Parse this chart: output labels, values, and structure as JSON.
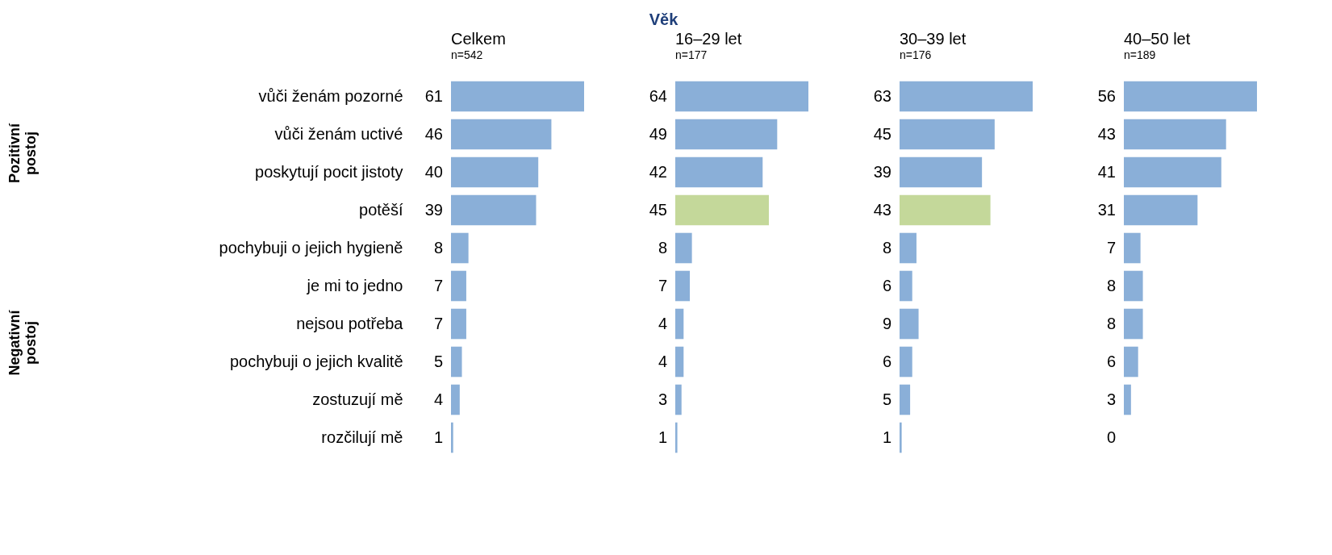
{
  "chart_data": [
    {
      "type": "bar",
      "orientation": "horizontal",
      "title": "Celkem",
      "subtitle": "n=542",
      "categories": [
        "vůči ženám pozorné",
        "vůči ženám uctivé",
        "poskytují pocit jistoty",
        "potěší",
        "pochybuji o jejich hygieně",
        "je mi to jedno",
        "nejsou potřeba",
        "pochybuji o jejich kvalitě",
        "zostuzují mě",
        "rozčilují mě"
      ],
      "values": [
        61,
        46,
        40,
        39,
        8,
        7,
        7,
        5,
        4,
        1
      ],
      "colors": [
        "#8aafd8",
        "#8aafd8",
        "#8aafd8",
        "#8aafd8",
        "#8aafd8",
        "#8aafd8",
        "#8aafd8",
        "#8aafd8",
        "#8aafd8",
        "#8aafd8"
      ],
      "data_labels": true,
      "tick_labels": "y",
      "annotations": [
        "Pozitivní postoj",
        "Negativní postoj"
      ]
    },
    {
      "type": "bar",
      "orientation": "horizontal",
      "title": "16–29 let",
      "subtitle": "n=177",
      "categories": [
        null,
        null,
        null,
        null,
        null,
        null,
        null,
        null,
        null,
        null
      ],
      "values": [
        64,
        49,
        42,
        45,
        8,
        7,
        4,
        4,
        3,
        1
      ],
      "colors": [
        "#8aafd8",
        "#8aafd8",
        "#8aafd8",
        "#c4d89a",
        "#8aafd8",
        "#8aafd8",
        "#8aafd8",
        "#8aafd8",
        "#8aafd8",
        "#8aafd8"
      ],
      "data_labels": true,
      "tick_labels": false,
      "annotations": [
        "Věk"
      ]
    },
    {
      "type": "bar",
      "orientation": "horizontal",
      "title": "30–39 let",
      "subtitle": "n=176",
      "categories": [
        null,
        null,
        null,
        null,
        null,
        null,
        null,
        null,
        null,
        null
      ],
      "values": [
        63,
        45,
        39,
        43,
        8,
        6,
        9,
        6,
        5,
        1
      ],
      "colors": [
        "#8aafd8",
        "#8aafd8",
        "#8aafd8",
        "#c4d89a",
        "#8aafd8",
        "#8aafd8",
        "#8aafd8",
        "#8aafd8",
        "#8aafd8",
        "#8aafd8"
      ],
      "data_labels": true,
      "tick_labels": false
    },
    {
      "type": "bar",
      "orientation": "horizontal",
      "title": "40–50 let",
      "subtitle": "n=189",
      "categories": [
        null,
        null,
        null,
        null,
        null,
        null,
        null,
        null,
        null,
        null
      ],
      "values": [
        56,
        43,
        41,
        31,
        7,
        8,
        8,
        6,
        3,
        0
      ],
      "colors": [
        "#8aafd8",
        "#8aafd8",
        "#8aafd8",
        "#8aafd8",
        "#8aafd8",
        "#8aafd8",
        "#8aafd8",
        "#8aafd8",
        "#8aafd8",
        "#8aafd8"
      ],
      "data_labels": true,
      "tick_labels": false
    }
  ]
}
